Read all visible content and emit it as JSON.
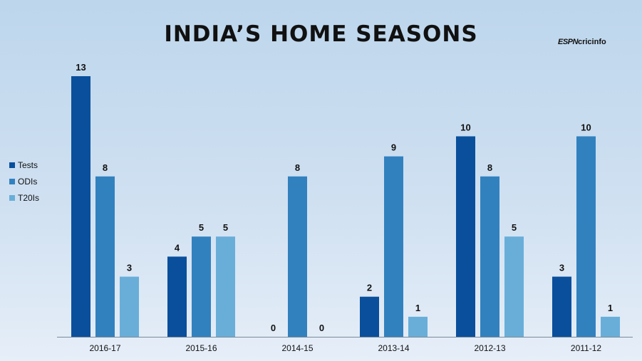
{
  "title": "INDIA’S HOME SEASONS",
  "brand": {
    "espn": "ESPN",
    "cricinfo": "cricinfo"
  },
  "colors": {
    "tests": "#0a4f9c",
    "odis": "#3281bf",
    "t20is": "#69aed9",
    "axis": "#7a8a9a"
  },
  "chart_data": {
    "type": "bar",
    "title": "INDIA’S HOME SEASONS",
    "xlabel": "",
    "ylabel": "",
    "ylim": [
      0,
      13
    ],
    "grid": false,
    "legend": "left",
    "categories": [
      "2016-17",
      "2015-16",
      "2014-15",
      "2013-14",
      "2012-13",
      "2011-12"
    ],
    "series": [
      {
        "name": "Tests",
        "values": [
          13,
          4,
          0,
          2,
          10,
          3
        ]
      },
      {
        "name": "ODIs",
        "values": [
          8,
          5,
          8,
          9,
          8,
          10
        ]
      },
      {
        "name": "T20Is",
        "values": [
          3,
          5,
          0,
          1,
          5,
          1
        ]
      }
    ]
  }
}
